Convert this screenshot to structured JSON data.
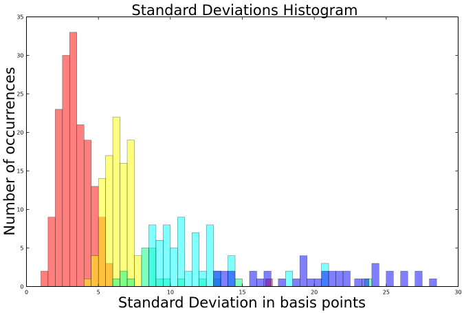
{
  "chart_data": {
    "type": "bar",
    "title": "Standard Deviations Histogram",
    "xlabel": "Standard Deviation in basis points",
    "ylabel": "Number of occurrences",
    "xlim": [
      0,
      30
    ],
    "ylim": [
      0,
      35
    ],
    "xticks": [
      0,
      5,
      10,
      15,
      20,
      25,
      30
    ],
    "yticks": [
      0,
      5,
      10,
      15,
      20,
      25,
      30,
      35
    ],
    "grid": false,
    "series": [
      {
        "color": "#ff0000",
        "bins": [
          {
            "x0": 1.0,
            "x1": 1.5,
            "count": 2
          },
          {
            "x0": 1.5,
            "x1": 2.0,
            "count": 9
          },
          {
            "x0": 2.0,
            "x1": 2.5,
            "count": 23
          },
          {
            "x0": 2.5,
            "x1": 3.0,
            "count": 30
          },
          {
            "x0": 3.0,
            "x1": 3.5,
            "count": 33
          },
          {
            "x0": 3.5,
            "x1": 4.0,
            "count": 21
          },
          {
            "x0": 4.0,
            "x1": 4.5,
            "count": 19
          },
          {
            "x0": 4.5,
            "x1": 5.0,
            "count": 13
          },
          {
            "x0": 5.0,
            "x1": 5.5,
            "count": 9
          },
          {
            "x0": 5.5,
            "x1": 6.0,
            "count": 3
          },
          {
            "x0": 16.6,
            "x1": 17.1,
            "count": 1
          }
        ]
      },
      {
        "color": "#ffff00",
        "bins": [
          {
            "x0": 4.0,
            "x1": 4.5,
            "count": 1
          },
          {
            "x0": 4.5,
            "x1": 5.0,
            "count": 4
          },
          {
            "x0": 5.0,
            "x1": 5.5,
            "count": 14
          },
          {
            "x0": 5.5,
            "x1": 6.0,
            "count": 17
          },
          {
            "x0": 6.0,
            "x1": 6.5,
            "count": 22
          },
          {
            "x0": 6.5,
            "x1": 7.0,
            "count": 16
          },
          {
            "x0": 7.0,
            "x1": 7.5,
            "count": 19
          },
          {
            "x0": 7.5,
            "x1": 8.0,
            "count": 4
          }
        ]
      },
      {
        "color": "#00ff7f",
        "bins": [
          {
            "x0": 6.0,
            "x1": 6.5,
            "count": 1
          },
          {
            "x0": 6.5,
            "x1": 7.0,
            "count": 2
          },
          {
            "x0": 7.0,
            "x1": 7.5,
            "count": 1
          },
          {
            "x0": 8.0,
            "x1": 8.5,
            "count": 5
          },
          {
            "x0": 8.5,
            "x1": 9.0,
            "count": 5
          },
          {
            "x0": 9.0,
            "x1": 9.5,
            "count": 1
          },
          {
            "x0": 9.5,
            "x1": 10.0,
            "count": 1
          },
          {
            "x0": 10.5,
            "x1": 11.0,
            "count": 1
          },
          {
            "x0": 12.0,
            "x1": 12.5,
            "count": 1
          },
          {
            "x0": 13.0,
            "x1": 13.5,
            "count": 1
          },
          {
            "x0": 14.5,
            "x1": 15.0,
            "count": 1
          },
          {
            "x0": 23.5,
            "x1": 24.0,
            "count": 1
          }
        ]
      },
      {
        "color": "#00ffff",
        "bins": [
          {
            "x0": 8.5,
            "x1": 9.0,
            "count": 8
          },
          {
            "x0": 9.0,
            "x1": 9.5,
            "count": 6
          },
          {
            "x0": 9.5,
            "x1": 10.0,
            "count": 8
          },
          {
            "x0": 10.0,
            "x1": 10.5,
            "count": 5
          },
          {
            "x0": 10.5,
            "x1": 11.0,
            "count": 9
          },
          {
            "x0": 11.0,
            "x1": 11.5,
            "count": 2
          },
          {
            "x0": 11.5,
            "x1": 12.0,
            "count": 7
          },
          {
            "x0": 12.0,
            "x1": 12.5,
            "count": 2
          },
          {
            "x0": 12.5,
            "x1": 13.0,
            "count": 8
          },
          {
            "x0": 13.0,
            "x1": 13.5,
            "count": 2
          },
          {
            "x0": 14.0,
            "x1": 14.5,
            "count": 4
          },
          {
            "x0": 18.0,
            "x1": 18.5,
            "count": 2
          },
          {
            "x0": 20.5,
            "x1": 21.0,
            "count": 3
          }
        ]
      },
      {
        "color": "#0000ff",
        "bins": [
          {
            "x0": 13.0,
            "x1": 13.5,
            "count": 2
          },
          {
            "x0": 13.5,
            "x1": 14.0,
            "count": 2
          },
          {
            "x0": 14.0,
            "x1": 14.5,
            "count": 2
          },
          {
            "x0": 15.5,
            "x1": 16.0,
            "count": 2
          },
          {
            "x0": 16.0,
            "x1": 16.5,
            "count": 1
          },
          {
            "x0": 16.5,
            "x1": 17.0,
            "count": 2
          },
          {
            "x0": 17.5,
            "x1": 18.0,
            "count": 1
          },
          {
            "x0": 18.5,
            "x1": 19.0,
            "count": 1
          },
          {
            "x0": 19.0,
            "x1": 19.5,
            "count": 4
          },
          {
            "x0": 19.5,
            "x1": 20.0,
            "count": 1
          },
          {
            "x0": 20.0,
            "x1": 20.5,
            "count": 1
          },
          {
            "x0": 20.5,
            "x1": 21.0,
            "count": 2
          },
          {
            "x0": 21.0,
            "x1": 21.5,
            "count": 2
          },
          {
            "x0": 21.5,
            "x1": 22.0,
            "count": 2
          },
          {
            "x0": 22.0,
            "x1": 22.5,
            "count": 2
          },
          {
            "x0": 22.8,
            "x1": 23.3,
            "count": 1
          },
          {
            "x0": 23.3,
            "x1": 23.8,
            "count": 1
          },
          {
            "x0": 24.0,
            "x1": 24.5,
            "count": 3
          },
          {
            "x0": 25.0,
            "x1": 25.5,
            "count": 2
          },
          {
            "x0": 26.0,
            "x1": 26.5,
            "count": 2
          },
          {
            "x0": 27.0,
            "x1": 27.5,
            "count": 2
          },
          {
            "x0": 28.0,
            "x1": 28.5,
            "count": 1
          }
        ]
      }
    ]
  }
}
